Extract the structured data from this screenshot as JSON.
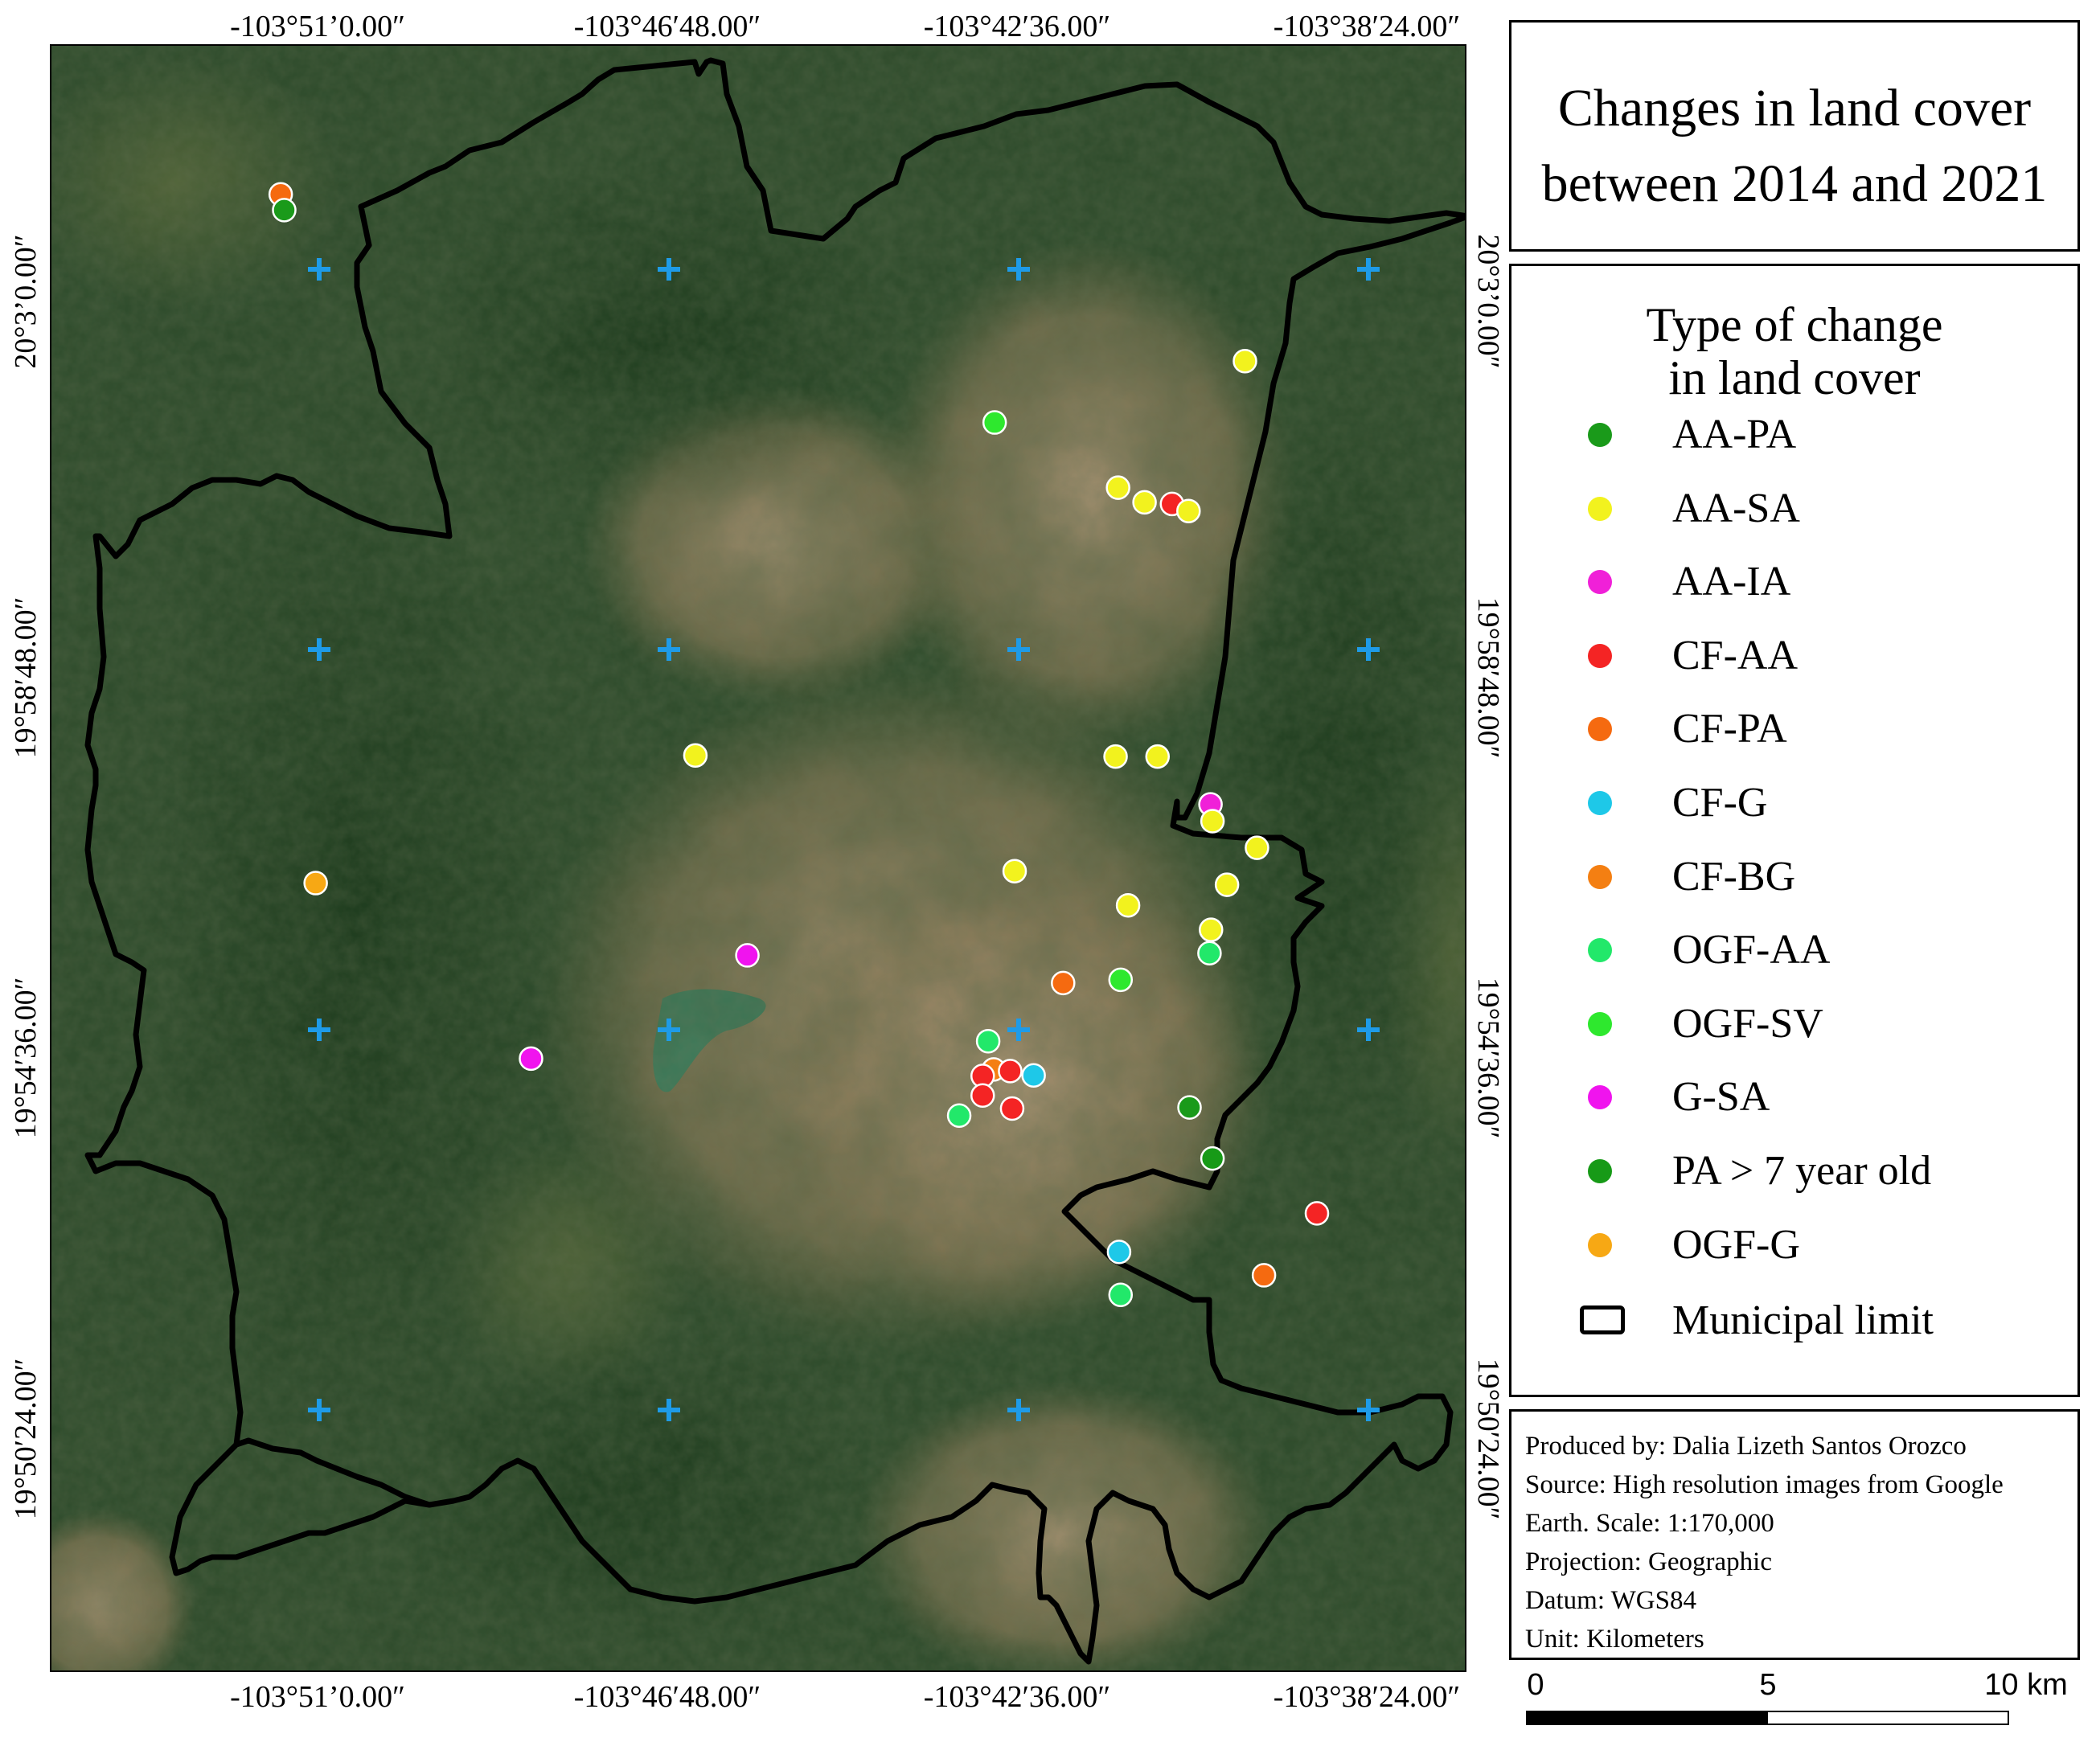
{
  "title": {
    "line1": "Changes in land cover",
    "line2": "between 2014 and 2021"
  },
  "coordinates": {
    "top": [
      "-103°51’0.00″",
      "-103°46′48.00″",
      "-103°42′36.00″",
      "-103°38′24.00″"
    ],
    "bottom": [
      "-103°51’0.00″",
      "-103°46′48.00″",
      "-103°42′36.00″",
      "-103°38′24.00″"
    ],
    "left": [
      "20°3’0.00″",
      "19°58′48.00″",
      "19°54′36.00″",
      "19°50′24.00″"
    ],
    "right": [
      "20°3’0.00″",
      "19°58′48.00″",
      "19°54′36.00″",
      "19°50′24.00″"
    ]
  },
  "legend": {
    "title_line1": "Type of change",
    "title_line2": "in land cover",
    "items": [
      {
        "label": "AA-PA",
        "color": "#1a9a1a"
      },
      {
        "label": "AA-SA",
        "color": "#f2f21e"
      },
      {
        "label": "AA-IA",
        "color": "#f020d8"
      },
      {
        "label": "CF-AA",
        "color": "#f42424"
      },
      {
        "label": "CF-PA",
        "color": "#f56a10"
      },
      {
        "label": "CF-G",
        "color": "#1ec8e8"
      },
      {
        "label": "CF-BG",
        "color": "#f47f12"
      },
      {
        "label": "OGF-AA",
        "color": "#22e86a"
      },
      {
        "label": "OGF-SV",
        "color": "#2ee82e"
      },
      {
        "label": "G-SA",
        "color": "#f014ee"
      },
      {
        "label": "PA > 7 year old",
        "color": "#179a17"
      },
      {
        "label": "OGF-G",
        "color": "#f7a814"
      }
    ],
    "limit_label": "Municipal limit"
  },
  "credits": [
    "Produced by: Dalia Lizeth Santos Orozco",
    "Source: High resolution images from Google",
    "Earth. Scale: 1:170,000",
    "Projection: Geographic",
    "Datum: WGS84",
    "Unit: Kilometers"
  ],
  "scalebar": {
    "labels": [
      "0",
      "5",
      "10 km"
    ]
  },
  "map": {
    "grid_marker_color": "#1e9be8",
    "boundary_color": "#000000",
    "points": [
      {
        "type": "CF-PA",
        "lng": -103.8577,
        "lat": 20.0638
      },
      {
        "type": "AA-PA",
        "lng": -103.857,
        "lat": 20.0609
      },
      {
        "type": "AA-SA",
        "lng": -103.6647,
        "lat": 20.0331
      },
      {
        "type": "OGF-SV",
        "lng": -103.7148,
        "lat": 20.0218
      },
      {
        "type": "AA-SA",
        "lng": -103.6901,
        "lat": 20.0098
      },
      {
        "type": "AA-SA",
        "lng": -103.6848,
        "lat": 20.0071
      },
      {
        "type": "CF-AA",
        "lng": -103.6793,
        "lat": 20.0068
      },
      {
        "type": "AA-SA",
        "lng": -103.676,
        "lat": 20.0055
      },
      {
        "type": "AA-SA",
        "lng": -103.7747,
        "lat": 19.9605
      },
      {
        "type": "AA-SA",
        "lng": -103.6906,
        "lat": 19.9603
      },
      {
        "type": "AA-SA",
        "lng": -103.6822,
        "lat": 19.9603
      },
      {
        "type": "AA-IA",
        "lng": -103.6716,
        "lat": 19.9515
      },
      {
        "type": "AA-SA",
        "lng": -103.6712,
        "lat": 19.9484
      },
      {
        "type": "AA-SA",
        "lng": -103.6623,
        "lat": 19.9435
      },
      {
        "type": "AA-SA",
        "lng": -103.7108,
        "lat": 19.9392
      },
      {
        "type": "AA-SA",
        "lng": -103.6683,
        "lat": 19.9367
      },
      {
        "type": "AA-SA",
        "lng": -103.6881,
        "lat": 19.9329
      },
      {
        "type": "OGF-G",
        "lng": -103.8507,
        "lat": 19.937
      },
      {
        "type": "AA-SA",
        "lng": -103.6715,
        "lat": 19.9284
      },
      {
        "type": "G-SA",
        "lng": -103.7643,
        "lat": 19.9237
      },
      {
        "type": "OGF-AA",
        "lng": -103.6718,
        "lat": 19.9241
      },
      {
        "type": "OGF-SV",
        "lng": -103.6896,
        "lat": 19.9192
      },
      {
        "type": "CF-PA",
        "lng": -103.7011,
        "lat": 19.9186
      },
      {
        "type": "OGF-AA",
        "lng": -103.7161,
        "lat": 19.9079
      },
      {
        "type": "G-SA",
        "lng": -103.8076,
        "lat": 19.9047
      },
      {
        "type": "CF-BG",
        "lng": -103.715,
        "lat": 19.9027
      },
      {
        "type": "CF-AA",
        "lng": -103.7117,
        "lat": 19.9024
      },
      {
        "type": "CF-AA",
        "lng": -103.7172,
        "lat": 19.9015
      },
      {
        "type": "CF-G",
        "lng": -103.707,
        "lat": 19.9016
      },
      {
        "type": "CF-AA",
        "lng": -103.7172,
        "lat": 19.8979
      },
      {
        "type": "OGF-AA",
        "lng": -103.7219,
        "lat": 19.8942
      },
      {
        "type": "CF-AA",
        "lng": -103.7113,
        "lat": 19.8955
      },
      {
        "type": "AA-PA",
        "lng": -103.6758,
        "lat": 19.8957
      },
      {
        "type": "PA > 7 year old",
        "lng": -103.6712,
        "lat": 19.8863
      },
      {
        "type": "CF-AA",
        "lng": -103.6503,
        "lat": 19.8762
      },
      {
        "type": "CF-G",
        "lng": -103.6899,
        "lat": 19.8691
      },
      {
        "type": "CF-PA",
        "lng": -103.6609,
        "lat": 19.8648
      },
      {
        "type": "OGF-AA",
        "lng": -103.6896,
        "lat": 19.8612
      }
    ]
  }
}
